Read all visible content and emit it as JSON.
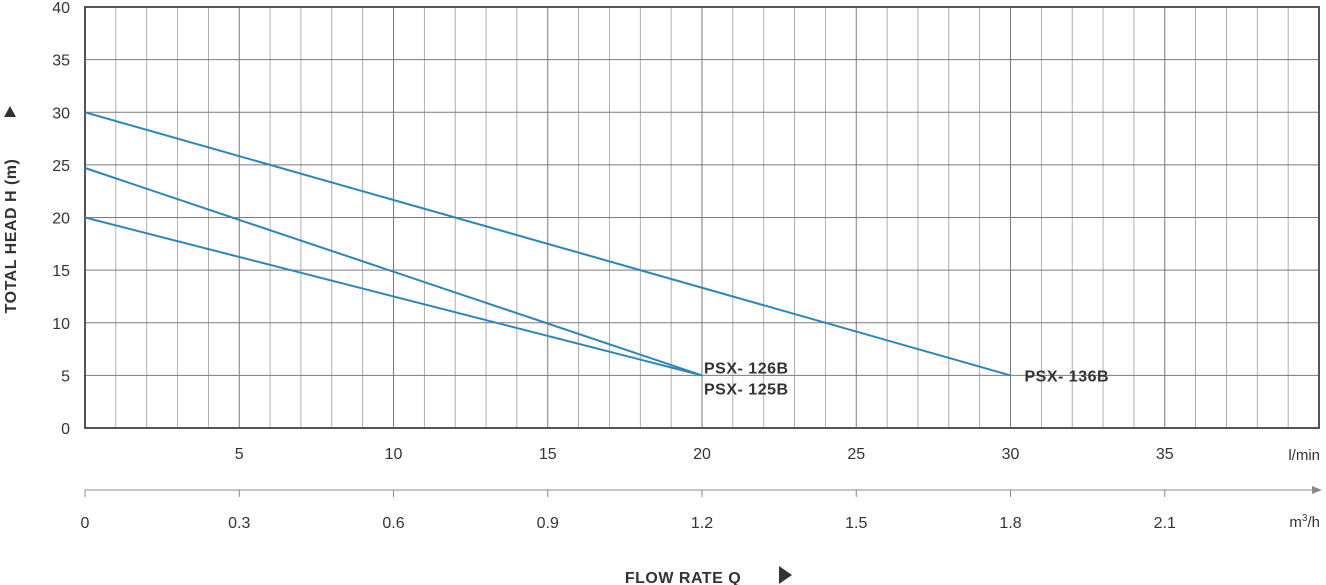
{
  "chart_data": {
    "type": "line",
    "title": "",
    "ylabel": "TOTAL HEAD H (m)",
    "xlabel": "FLOW RATE Q",
    "xlim": [
      0,
      40
    ],
    "ylim": [
      0,
      40
    ],
    "x_unit": "l/min",
    "x2_unit_base": "m",
    "x2_unit_sup": "3",
    "x2_unit_suffix": "/h",
    "y_ticks": [
      "0",
      "5",
      "10",
      "15",
      "20",
      "25",
      "30",
      "35",
      "40"
    ],
    "x_ticks": [
      "5",
      "10",
      "15",
      "20",
      "25",
      "30",
      "35"
    ],
    "x2_ticks": [
      "0",
      "0.3",
      "0.6",
      "0.9",
      "1.2",
      "1.5",
      "1.8",
      "2.1"
    ],
    "series_color": "#2b86b8",
    "series": [
      {
        "name": "PSX- 136B",
        "x": [
          0,
          30
        ],
        "y": [
          30,
          5
        ]
      },
      {
        "name": "PSX- 126B",
        "x": [
          0,
          20
        ],
        "y": [
          24.7,
          5
        ]
      },
      {
        "name": "PSX- 125B",
        "x": [
          0,
          20
        ],
        "y": [
          20,
          5
        ]
      }
    ]
  }
}
